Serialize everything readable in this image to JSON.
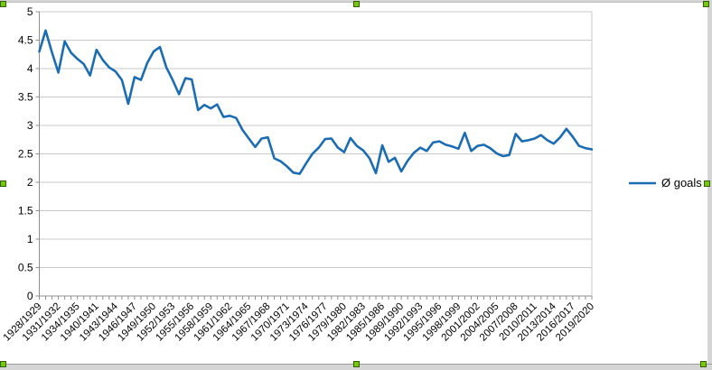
{
  "chart_data": {
    "type": "line",
    "title": "",
    "xlabel": "",
    "ylabel": "",
    "ylim": [
      0,
      5
    ],
    "ytick_step": 0.5,
    "ytick_labels": [
      "0",
      "0.5",
      "1",
      "1.5",
      "2",
      "2.5",
      "3",
      "3.5",
      "4",
      "4.5",
      "5"
    ],
    "grid": "horizontal",
    "legend_position": "right",
    "x_label_rotation_deg": -45,
    "xtick_label_interval": 3,
    "visible_xtick_labels": [
      "1928/1929",
      "1931/1932",
      "1934/1935",
      "1940/1941",
      "1943/1944",
      "1946/1947",
      "1949/1950",
      "1952/1953",
      "1955/1956",
      "1958/1959",
      "1961/1962",
      "1964/1965",
      "1967/1968",
      "1970/1971",
      "1973/1974",
      "1976/1977",
      "1979/1980",
      "1982/1983",
      "1985/1986",
      "1989/1990",
      "1992/1993",
      "1995/1996",
      "1998/1999",
      "2001/2002",
      "2004/2005",
      "2007/2008",
      "2010/2011",
      "2013/2014",
      "2016/2017",
      "2019/2020"
    ],
    "categories": [
      "1928/1929",
      "1929/1930",
      "1930/1931",
      "1931/1932",
      "1932/1933",
      "1933/1934",
      "1934/1935",
      "1935/1936",
      "1939/1940",
      "1940/1941",
      "1941/1942",
      "1942/1943",
      "1943/1944",
      "1944/1945",
      "1945/1946",
      "1946/1947",
      "1947/1948",
      "1948/1949",
      "1949/1950",
      "1950/1951",
      "1951/1952",
      "1952/1953",
      "1953/1954",
      "1954/1955",
      "1955/1956",
      "1956/1957",
      "1957/1958",
      "1958/1959",
      "1959/1960",
      "1960/1961",
      "1961/1962",
      "1962/1963",
      "1963/1964",
      "1964/1965",
      "1965/1966",
      "1966/1967",
      "1967/1968",
      "1968/1969",
      "1969/1970",
      "1970/1971",
      "1971/1972",
      "1972/1973",
      "1973/1974",
      "1974/1975",
      "1975/1976",
      "1976/1977",
      "1977/1978",
      "1978/1979",
      "1979/1980",
      "1980/1981",
      "1981/1982",
      "1982/1983",
      "1983/1984",
      "1984/1985",
      "1985/1986",
      "1986/1987",
      "1987/1988",
      "1989/1990",
      "1990/1991",
      "1991/1992",
      "1992/1993",
      "1993/1994",
      "1994/1995",
      "1995/1996",
      "1996/1997",
      "1997/1998",
      "1998/1999",
      "1999/2000",
      "2000/2001",
      "2001/2002",
      "2002/2003",
      "2003/2004",
      "2004/2005",
      "2005/2006",
      "2006/2007",
      "2007/2008",
      "2008/2009",
      "2009/2010",
      "2010/2011",
      "2011/2012",
      "2012/2013",
      "2013/2014",
      "2014/2015",
      "2015/2016",
      "2016/2017",
      "2017/2018",
      "2018/2019",
      "2019/2020"
    ],
    "series": [
      {
        "name": "Ø goals",
        "color": "#1b6db3",
        "values": [
          4.3,
          4.67,
          4.28,
          3.93,
          4.48,
          4.28,
          4.17,
          4.08,
          3.88,
          4.33,
          4.15,
          4.02,
          3.95,
          3.8,
          3.38,
          3.85,
          3.8,
          4.1,
          4.3,
          4.38,
          4.02,
          3.8,
          3.55,
          3.83,
          3.81,
          3.27,
          3.36,
          3.3,
          3.37,
          3.15,
          3.17,
          3.13,
          2.92,
          2.77,
          2.62,
          2.77,
          2.79,
          2.42,
          2.37,
          2.28,
          2.17,
          2.15,
          2.33,
          2.5,
          2.61,
          2.76,
          2.77,
          2.61,
          2.53,
          2.78,
          2.64,
          2.56,
          2.42,
          2.16,
          2.65,
          2.36,
          2.43,
          2.19,
          2.38,
          2.52,
          2.61,
          2.55,
          2.7,
          2.72,
          2.66,
          2.63,
          2.59,
          2.87,
          2.55,
          2.64,
          2.66,
          2.6,
          2.51,
          2.46,
          2.48,
          2.85,
          2.72,
          2.74,
          2.77,
          2.83,
          2.74,
          2.68,
          2.79,
          2.94,
          2.8,
          2.64,
          2.6,
          2.58
        ]
      }
    ]
  },
  "colors": {
    "series_line": "#1b6db3",
    "gridline": "#c9c9c9",
    "axis": "#8f8f8f",
    "selection_handle": "#74c80d",
    "window_chrome": "#d5d5d5"
  }
}
